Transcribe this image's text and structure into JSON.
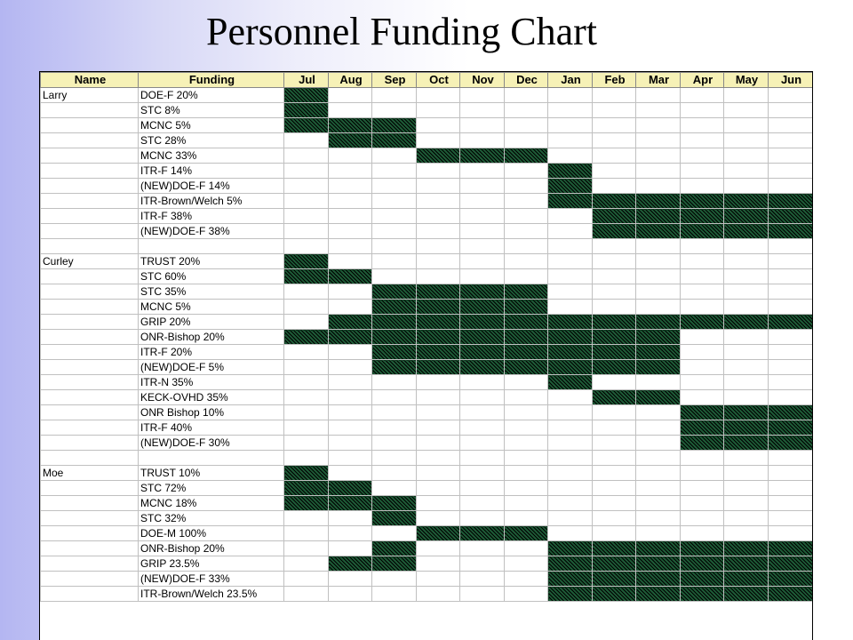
{
  "title": "Personnel Funding Chart",
  "fill_color": "#1d5a36",
  "header_color": "#f6f1b6",
  "columns": [
    "Name",
    "Funding",
    "Jul",
    "Aug",
    "Sep",
    "Oct",
    "Nov",
    "Dec",
    "Jan",
    "Feb",
    "Mar",
    "Apr",
    "May",
    "Jun"
  ],
  "rows": [
    {
      "name": "Larry",
      "funding": "DOE-F 20%",
      "months": [
        1,
        0,
        0,
        0,
        0,
        0,
        0,
        0,
        0,
        0,
        0,
        0
      ]
    },
    {
      "name": "",
      "funding": "STC 8%",
      "months": [
        1,
        0,
        0,
        0,
        0,
        0,
        0,
        0,
        0,
        0,
        0,
        0
      ]
    },
    {
      "name": "",
      "funding": "MCNC 5%",
      "months": [
        1,
        1,
        1,
        0,
        0,
        0,
        0,
        0,
        0,
        0,
        0,
        0
      ]
    },
    {
      "name": "",
      "funding": "STC 28%",
      "months": [
        0,
        1,
        1,
        0,
        0,
        0,
        0,
        0,
        0,
        0,
        0,
        0
      ]
    },
    {
      "name": "",
      "funding": "MCNC 33%",
      "months": [
        0,
        0,
        0,
        1,
        1,
        1,
        0,
        0,
        0,
        0,
        0,
        0
      ]
    },
    {
      "name": "",
      "funding": "ITR-F 14%",
      "months": [
        0,
        0,
        0,
        0,
        0,
        0,
        1,
        0,
        0,
        0,
        0,
        0
      ]
    },
    {
      "name": "",
      "funding": "(NEW)DOE-F 14%",
      "months": [
        0,
        0,
        0,
        0,
        0,
        0,
        1,
        0,
        0,
        0,
        0,
        0
      ]
    },
    {
      "name": "",
      "funding": "ITR-Brown/Welch 5%",
      "months": [
        0,
        0,
        0,
        0,
        0,
        0,
        1,
        1,
        1,
        1,
        1,
        1
      ]
    },
    {
      "name": "",
      "funding": "ITR-F 38%",
      "months": [
        0,
        0,
        0,
        0,
        0,
        0,
        0,
        1,
        1,
        1,
        1,
        1
      ]
    },
    {
      "name": "",
      "funding": "(NEW)DOE-F 38%",
      "months": [
        0,
        0,
        0,
        0,
        0,
        0,
        0,
        1,
        1,
        1,
        1,
        1
      ]
    },
    {
      "name": "",
      "funding": "",
      "months": [
        0,
        0,
        0,
        0,
        0,
        0,
        0,
        0,
        0,
        0,
        0,
        0
      ]
    },
    {
      "name": "Curley",
      "funding": "TRUST 20%",
      "months": [
        1,
        0,
        0,
        0,
        0,
        0,
        0,
        0,
        0,
        0,
        0,
        0
      ]
    },
    {
      "name": "",
      "funding": "STC 60%",
      "months": [
        1,
        1,
        0,
        0,
        0,
        0,
        0,
        0,
        0,
        0,
        0,
        0
      ]
    },
    {
      "name": "",
      "funding": "STC 35%",
      "months": [
        0,
        0,
        1,
        1,
        1,
        1,
        0,
        0,
        0,
        0,
        0,
        0
      ]
    },
    {
      "name": "",
      "funding": "MCNC 5%",
      "months": [
        0,
        0,
        1,
        1,
        1,
        1,
        0,
        0,
        0,
        0,
        0,
        0
      ]
    },
    {
      "name": "",
      "funding": "GRIP 20%",
      "months": [
        0,
        1,
        1,
        1,
        1,
        1,
        1,
        1,
        1,
        1,
        1,
        1
      ]
    },
    {
      "name": "",
      "funding": "ONR-Bishop 20%",
      "months": [
        1,
        1,
        1,
        1,
        1,
        1,
        1,
        1,
        1,
        0,
        0,
        0
      ]
    },
    {
      "name": "",
      "funding": "ITR-F 20%",
      "months": [
        0,
        0,
        1,
        1,
        1,
        1,
        1,
        1,
        1,
        0,
        0,
        0
      ]
    },
    {
      "name": "",
      "funding": "(NEW)DOE-F 5%",
      "months": [
        0,
        0,
        1,
        1,
        1,
        1,
        1,
        1,
        1,
        0,
        0,
        0
      ]
    },
    {
      "name": "",
      "funding": "ITR-N 35%",
      "months": [
        0,
        0,
        0,
        0,
        0,
        0,
        1,
        0,
        0,
        0,
        0,
        0
      ]
    },
    {
      "name": "",
      "funding": "KECK-OVHD 35%",
      "months": [
        0,
        0,
        0,
        0,
        0,
        0,
        0,
        1,
        1,
        0,
        0,
        0
      ]
    },
    {
      "name": "",
      "funding": "ONR Bishop 10%",
      "months": [
        0,
        0,
        0,
        0,
        0,
        0,
        0,
        0,
        0,
        1,
        1,
        1
      ]
    },
    {
      "name": "",
      "funding": "ITR-F 40%",
      "months": [
        0,
        0,
        0,
        0,
        0,
        0,
        0,
        0,
        0,
        1,
        1,
        1
      ]
    },
    {
      "name": "",
      "funding": "(NEW)DOE-F 30%",
      "months": [
        0,
        0,
        0,
        0,
        0,
        0,
        0,
        0,
        0,
        1,
        1,
        1
      ]
    },
    {
      "name": "",
      "funding": "",
      "months": [
        0,
        0,
        0,
        0,
        0,
        0,
        0,
        0,
        0,
        0,
        0,
        0
      ]
    },
    {
      "name": "Moe",
      "funding": "TRUST 10%",
      "months": [
        1,
        0,
        0,
        0,
        0,
        0,
        0,
        0,
        0,
        0,
        0,
        0
      ]
    },
    {
      "name": "",
      "funding": "STC 72%",
      "months": [
        1,
        1,
        0,
        0,
        0,
        0,
        0,
        0,
        0,
        0,
        0,
        0
      ]
    },
    {
      "name": "",
      "funding": "MCNC 18%",
      "months": [
        1,
        1,
        1,
        0,
        0,
        0,
        0,
        0,
        0,
        0,
        0,
        0
      ]
    },
    {
      "name": "",
      "funding": "STC 32%",
      "months": [
        0,
        0,
        1,
        0,
        0,
        0,
        0,
        0,
        0,
        0,
        0,
        0
      ]
    },
    {
      "name": "",
      "funding": "DOE-M 100%",
      "months": [
        0,
        0,
        0,
        1,
        1,
        1,
        0,
        0,
        0,
        0,
        0,
        0
      ]
    },
    {
      "name": "",
      "funding": "ONR-Bishop 20%",
      "months": [
        0,
        0,
        1,
        0,
        0,
        0,
        1,
        1,
        1,
        1,
        1,
        1
      ]
    },
    {
      "name": "",
      "funding": "GRIP 23.5%",
      "months": [
        0,
        1,
        1,
        0,
        0,
        0,
        1,
        1,
        1,
        1,
        1,
        1
      ]
    },
    {
      "name": "",
      "funding": "(NEW)DOE-F 33%",
      "months": [
        0,
        0,
        0,
        0,
        0,
        0,
        1,
        1,
        1,
        1,
        1,
        1
      ]
    },
    {
      "name": "",
      "funding": "ITR-Brown/Welch 23.5%",
      "months": [
        0,
        0,
        0,
        0,
        0,
        0,
        1,
        1,
        1,
        1,
        1,
        1
      ]
    }
  ]
}
